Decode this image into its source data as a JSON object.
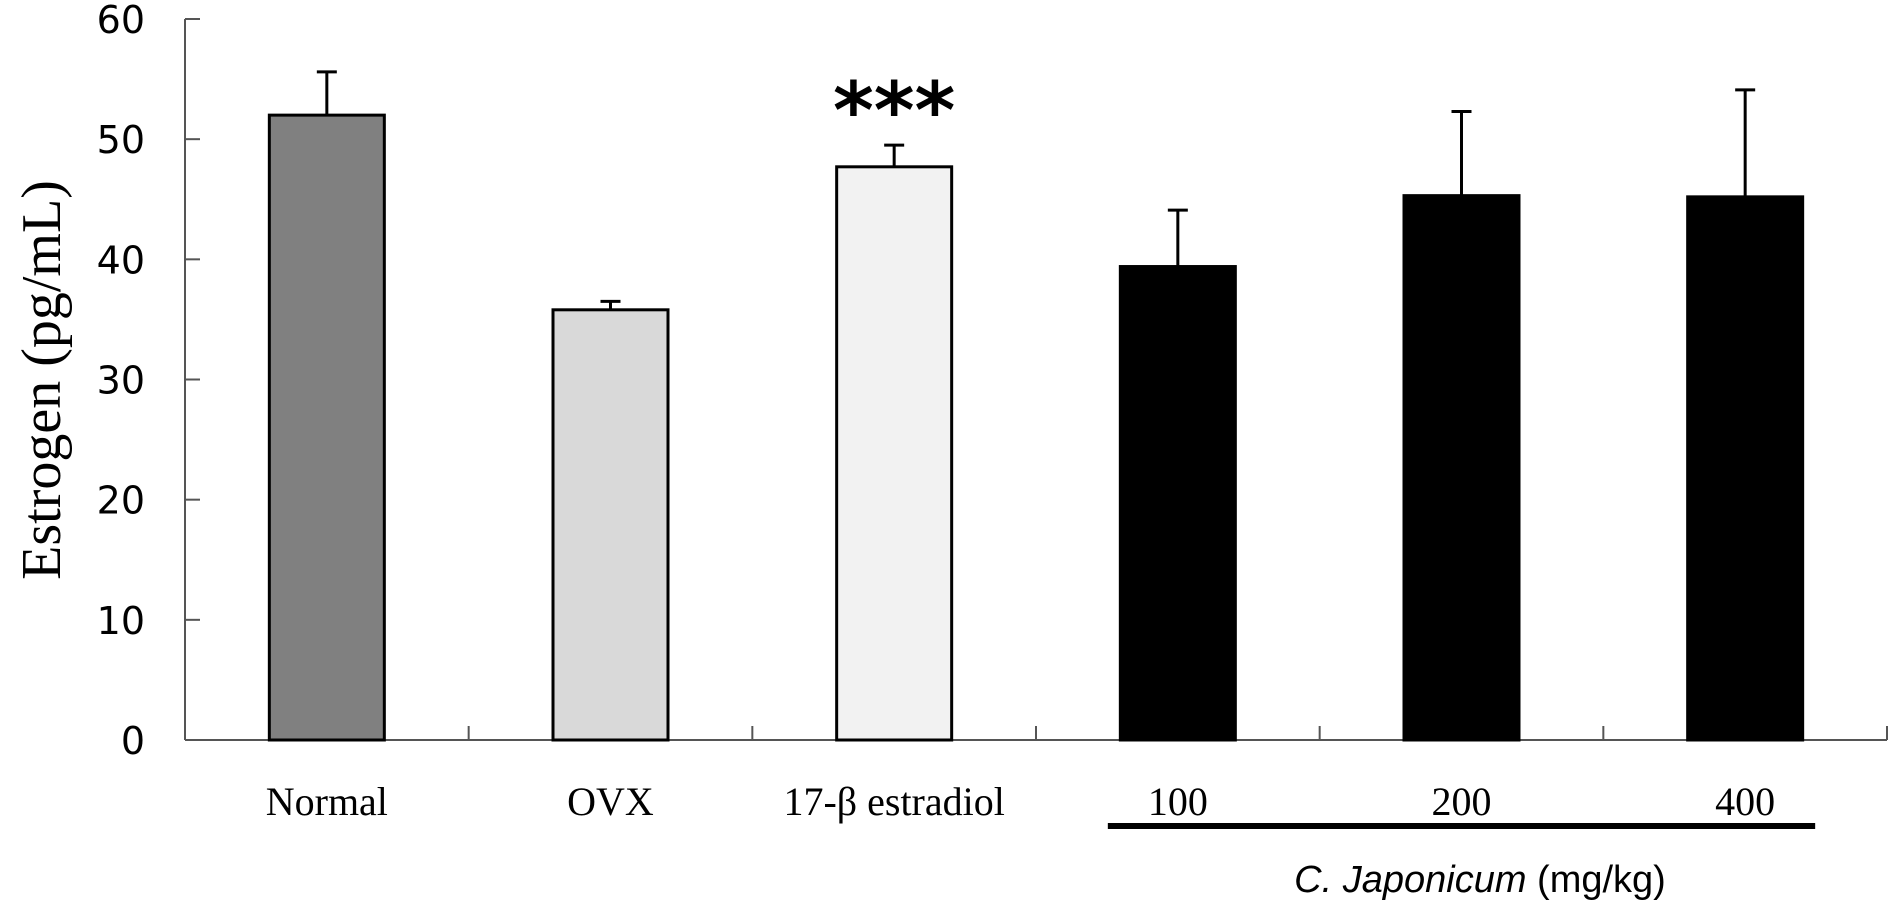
{
  "chart_data": {
    "type": "bar",
    "title": "",
    "ylabel": "Estrogen (pg/mL)",
    "xlabel_group": {
      "italic": "C. Japonicum",
      "unit": " (mg/kg)",
      "members": [
        "100",
        "200",
        "400"
      ]
    },
    "ylim": [
      0,
      60
    ],
    "yticks": [
      0,
      10,
      20,
      30,
      40,
      50,
      60
    ],
    "grid": false,
    "legend": null,
    "categories": [
      "Normal",
      "OVX",
      "17-β estradiol",
      "100",
      "200",
      "400"
    ],
    "values": [
      52.0,
      35.8,
      47.7,
      39.4,
      45.3,
      45.2
    ],
    "error_plus": [
      3.6,
      0.7,
      1.8,
      4.7,
      7.0,
      8.9
    ],
    "colors": [
      "#808080",
      "#d9d9d9",
      "#f2f2f2",
      "#000000",
      "#000000",
      "#000000"
    ],
    "annotations": [
      {
        "category": "17-β estradiol",
        "text": "***"
      }
    ]
  }
}
